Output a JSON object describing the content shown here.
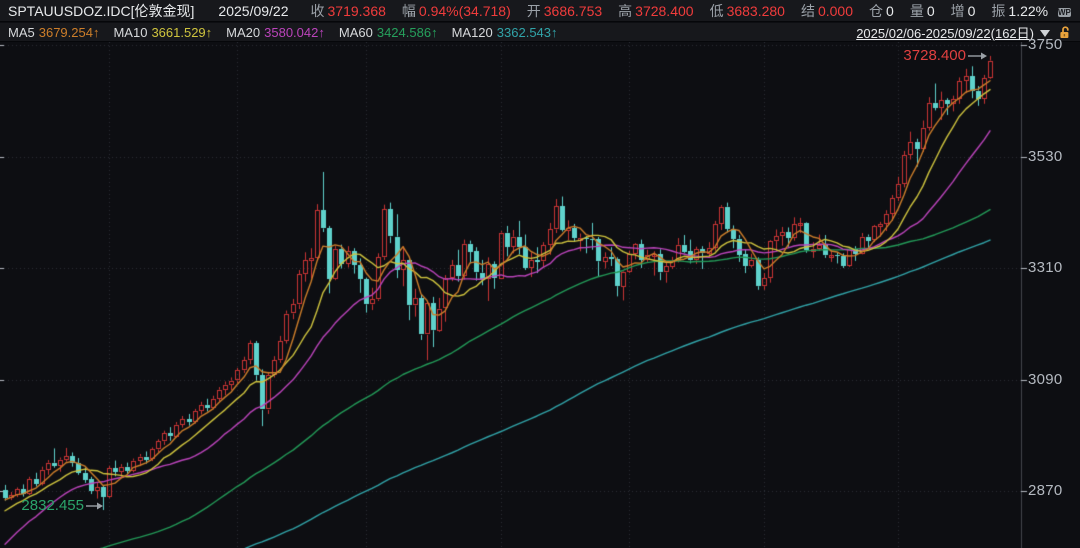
{
  "quote_bar": {
    "symbol": "SPTAUUSDOZ.IDC[伦敦金现]",
    "date": "2025/09/22",
    "close": {
      "label": "收",
      "value": "3719.368"
    },
    "range": {
      "label": "幅",
      "value": "0.94%(34.718)"
    },
    "open": {
      "label": "开",
      "value": "3686.753"
    },
    "high": {
      "label": "高",
      "value": "3728.400"
    },
    "low": {
      "label": "低",
      "value": "3683.280"
    },
    "settle": {
      "label": "结",
      "value": "0.000"
    },
    "position": {
      "label": "仓",
      "value": "0"
    },
    "volume": {
      "label": "量",
      "value": "0"
    },
    "increase": {
      "label": "增",
      "value": "0"
    },
    "amplitude": {
      "label": "振",
      "value": "1.22%"
    },
    "window_badge": "WP"
  },
  "ma_bar": {
    "items": [
      {
        "label": "MA5",
        "value": "3679.254↑",
        "color": "#cd7e2a"
      },
      {
        "label": "MA10",
        "value": "3661.529↑",
        "color": "#cfc43e"
      },
      {
        "label": "MA20",
        "value": "3580.042↑",
        "color": "#bb44bb"
      },
      {
        "label": "MA60",
        "value": "3424.586↑",
        "color": "#26a05c"
      },
      {
        "label": "MA120",
        "value": "3362.543↑",
        "color": "#31a3a8"
      }
    ],
    "period": {
      "text": "2025/02/06-2025/09/22(162日)"
    }
  },
  "colors": {
    "bg": "#0d0e12",
    "panel": "#17181c",
    "up": "#c93434",
    "down": "#5fd2cc",
    "ma5": "#cd7e2a",
    "ma10": "#cfc43e",
    "ma20": "#bb44bb",
    "ma60": "#239a58",
    "ma120": "#31a3a8",
    "grid": "#2c2f37",
    "axis": "#43464d",
    "tick_text": "#b4b9c0",
    "anno_high": "#e04040",
    "anno_low": "#2ba56b",
    "arrow": "#9aa0a6"
  },
  "chart_data": {
    "type": "candlestick",
    "title": "SPTAUUSDOZ.IDC 伦敦金现 (London spot gold) daily candles with MA5/10/20/60/120",
    "date_range": "2025/02/06-2025/09/22",
    "num_days": 162,
    "grid": "dotted",
    "y_axis": {
      "ticks": [
        3750,
        3530,
        3310,
        3090,
        2870
      ],
      "price_top": 3750,
      "price_bottom": 2870
    },
    "month_grid_days": [
      17,
      38,
      59,
      81,
      102,
      124,
      146
    ],
    "annotations": {
      "high": {
        "text": "3728.400",
        "value": 3728.4,
        "day": 161
      },
      "low": {
        "text": "2832.455",
        "value": 2832.455,
        "day": 16
      }
    },
    "ma_periods": [
      {
        "p": 120,
        "c": "ma120"
      },
      {
        "p": 60,
        "c": "ma60"
      },
      {
        "p": 20,
        "c": "ma20"
      },
      {
        "p": 10,
        "c": "ma10"
      },
      {
        "p": 5,
        "c": "ma5"
      }
    ],
    "ma_seed_segments": [
      [
        2320,
        2420,
        30
      ],
      [
        2480,
        2600,
        25
      ],
      [
        2570,
        2660,
        18
      ],
      [
        2660,
        2740,
        12
      ],
      [
        2740,
        2562,
        10
      ],
      [
        2570,
        2630,
        5
      ],
      [
        2608,
        2790,
        12
      ],
      [
        2800,
        2866,
        8
      ]
    ],
    "candles": [
      [
        2872,
        2882,
        2851,
        2856
      ],
      [
        2856,
        2868,
        2852,
        2862
      ],
      [
        2862,
        2877,
        2858,
        2874
      ],
      [
        2874,
        2883,
        2859,
        2864
      ],
      [
        2864,
        2898,
        2862,
        2894
      ],
      [
        2894,
        2906,
        2879,
        2885
      ],
      [
        2885,
        2918,
        2881,
        2912
      ],
      [
        2912,
        2931,
        2902,
        2926
      ],
      [
        2926,
        2954,
        2916,
        2920
      ],
      [
        2920,
        2936,
        2908,
        2932
      ],
      [
        2932,
        2955,
        2928,
        2939
      ],
      [
        2939,
        2946,
        2918,
        2925
      ],
      [
        2925,
        2935,
        2902,
        2906
      ],
      [
        2906,
        2916,
        2886,
        2893
      ],
      [
        2893,
        2898,
        2864,
        2870
      ],
      [
        2870,
        2886,
        2855,
        2877
      ],
      [
        2877,
        2881,
        2832.455,
        2858
      ],
      [
        2858,
        2920,
        2856,
        2915
      ],
      [
        2915,
        2930,
        2899,
        2908
      ],
      [
        2908,
        2923,
        2898,
        2918
      ],
      [
        2918,
        2926,
        2904,
        2910
      ],
      [
        2910,
        2934,
        2907,
        2930
      ],
      [
        2930,
        2943,
        2919,
        2938
      ],
      [
        2938,
        2948,
        2924,
        2932
      ],
      [
        2932,
        2956,
        2929,
        2952
      ],
      [
        2952,
        2972,
        2947,
        2968
      ],
      [
        2968,
        2989,
        2961,
        2984
      ],
      [
        2984,
        2996,
        2969,
        2978
      ],
      [
        2978,
        3006,
        2975,
        3001
      ],
      [
        3001,
        3018,
        2995,
        3012
      ],
      [
        3012,
        3022,
        2999,
        3006
      ],
      [
        3006,
        3032,
        3003,
        3028
      ],
      [
        3028,
        3046,
        3021,
        3040
      ],
      [
        3040,
        3052,
        3027,
        3034
      ],
      [
        3034,
        3058,
        3031,
        3052
      ],
      [
        3052,
        3075,
        3047,
        3070
      ],
      [
        3070,
        3086,
        3059,
        3080
      ],
      [
        3080,
        3094,
        3069,
        3088
      ],
      [
        3088,
        3113,
        3083,
        3108
      ],
      [
        3108,
        3135,
        3103,
        3128
      ],
      [
        3128,
        3167,
        3120,
        3162
      ],
      [
        3162,
        3166,
        3088,
        3098
      ],
      [
        3098,
        3110,
        2998,
        3030
      ],
      [
        3030,
        3105,
        3022,
        3098
      ],
      [
        3098,
        3136,
        3094,
        3128
      ],
      [
        3128,
        3176,
        3123,
        3166
      ],
      [
        3166,
        3226,
        3161,
        3220
      ],
      [
        3220,
        3249,
        3209,
        3238
      ],
      [
        3238,
        3306,
        3229,
        3298
      ],
      [
        3298,
        3341,
        3283,
        3326
      ],
      [
        3326,
        3349,
        3289,
        3330
      ],
      [
        3330,
        3436,
        3324,
        3424
      ],
      [
        3424,
        3499.5,
        3381,
        3388
      ],
      [
        3388,
        3393,
        3260,
        3288
      ],
      [
        3288,
        3353,
        3286,
        3348
      ],
      [
        3348,
        3356,
        3309,
        3318
      ],
      [
        3318,
        3353,
        3311,
        3343
      ],
      [
        3343,
        3349,
        3299,
        3316
      ],
      [
        3316,
        3329,
        3261,
        3288
      ],
      [
        3288,
        3291,
        3222,
        3238
      ],
      [
        3238,
        3271,
        3227,
        3248
      ],
      [
        3248,
        3339,
        3245,
        3331
      ],
      [
        3331,
        3435,
        3326,
        3426
      ],
      [
        3426,
        3439,
        3359,
        3372
      ],
      [
        3372,
        3416,
        3290,
        3306
      ],
      [
        3306,
        3353,
        3274,
        3325
      ],
      [
        3325,
        3327,
        3207,
        3236
      ],
      [
        3236,
        3269,
        3214,
        3250
      ],
      [
        3250,
        3258,
        3168,
        3178
      ],
      [
        3178,
        3245,
        3128,
        3240
      ],
      [
        3240,
        3253,
        3154,
        3187
      ],
      [
        3187,
        3251,
        3184,
        3230
      ],
      [
        3230,
        3296,
        3204,
        3290
      ],
      [
        3290,
        3326,
        3284,
        3315
      ],
      [
        3315,
        3346,
        3283,
        3294
      ],
      [
        3294,
        3366,
        3287,
        3358
      ],
      [
        3358,
        3364,
        3319,
        3343
      ],
      [
        3343,
        3351,
        3285,
        3301
      ],
      [
        3301,
        3326,
        3276,
        3288
      ],
      [
        3288,
        3331,
        3245,
        3318
      ],
      [
        3318,
        3323,
        3269,
        3290
      ],
      [
        3290,
        3383,
        3288,
        3380
      ],
      [
        3380,
        3393,
        3333,
        3353
      ],
      [
        3353,
        3385,
        3339,
        3372
      ],
      [
        3372,
        3403,
        3337,
        3352
      ],
      [
        3352,
        3376,
        3306,
        3310
      ],
      [
        3310,
        3341,
        3292,
        3326
      ],
      [
        3326,
        3351,
        3300,
        3323
      ],
      [
        3323,
        3361,
        3311,
        3355
      ],
      [
        3355,
        3399,
        3336,
        3386
      ],
      [
        3386,
        3446,
        3379,
        3432
      ],
      [
        3432,
        3451,
        3382,
        3385
      ],
      [
        3385,
        3404,
        3365,
        3388
      ],
      [
        3388,
        3397,
        3362,
        3369
      ],
      [
        3369,
        3378,
        3343,
        3370
      ],
      [
        3370,
        3373,
        3339,
        3368
      ],
      [
        3368,
        3399,
        3346,
        3367
      ],
      [
        3367,
        3371,
        3294,
        3323
      ],
      [
        3323,
        3341,
        3309,
        3332
      ],
      [
        3332,
        3351,
        3314,
        3328
      ],
      [
        3328,
        3331,
        3254,
        3274
      ],
      [
        3274,
        3305,
        3246,
        3303
      ],
      [
        3303,
        3344,
        3300,
        3338
      ],
      [
        3338,
        3359,
        3327,
        3357
      ],
      [
        3357,
        3366,
        3310,
        3326
      ],
      [
        3326,
        3346,
        3322,
        3336
      ],
      [
        3336,
        3343,
        3295,
        3337
      ],
      [
        3337,
        3347,
        3286,
        3301
      ],
      [
        3301,
        3323,
        3281,
        3313
      ],
      [
        3313,
        3332,
        3308,
        3324
      ],
      [
        3324,
        3369,
        3321,
        3356
      ],
      [
        3356,
        3375,
        3340,
        3343
      ],
      [
        3343,
        3366,
        3319,
        3325
      ],
      [
        3325,
        3352,
        3318,
        3347
      ],
      [
        3347,
        3353,
        3308,
        3339
      ],
      [
        3339,
        3361,
        3330,
        3350
      ],
      [
        3350,
        3403,
        3344,
        3397
      ],
      [
        3397,
        3434,
        3385,
        3431
      ],
      [
        3431,
        3439,
        3380,
        3387
      ],
      [
        3387,
        3394,
        3349,
        3368
      ],
      [
        3368,
        3375,
        3322,
        3337
      ],
      [
        3337,
        3346,
        3300,
        3314
      ],
      [
        3314,
        3338,
        3311,
        3326
      ],
      [
        3326,
        3331,
        3267,
        3274
      ],
      [
        3274,
        3300,
        3267,
        3290
      ],
      [
        3290,
        3365,
        3281,
        3363
      ],
      [
        3363,
        3386,
        3344,
        3373
      ],
      [
        3373,
        3391,
        3354,
        3381
      ],
      [
        3381,
        3390,
        3352,
        3369
      ],
      [
        3369,
        3410,
        3364,
        3397
      ],
      [
        3397,
        3409,
        3379,
        3398
      ],
      [
        3398,
        3400,
        3340,
        3344
      ],
      [
        3344,
        3361,
        3330,
        3348
      ],
      [
        3348,
        3376,
        3344,
        3355
      ],
      [
        3355,
        3375,
        3330,
        3335
      ],
      [
        3335,
        3346,
        3322,
        3336
      ],
      [
        3336,
        3341,
        3319,
        3334
      ],
      [
        3334,
        3339,
        3310,
        3315
      ],
      [
        3315,
        3351,
        3312,
        3348
      ],
      [
        3348,
        3353,
        3324,
        3339
      ],
      [
        3339,
        3379,
        3337,
        3372
      ],
      [
        3372,
        3376,
        3349,
        3365
      ],
      [
        3365,
        3395,
        3361,
        3393
      ],
      [
        3393,
        3401,
        3372,
        3397
      ],
      [
        3397,
        3424,
        3383,
        3417
      ],
      [
        3417,
        3454,
        3403,
        3448
      ],
      [
        3448,
        3490,
        3442,
        3476
      ],
      [
        3476,
        3541,
        3469,
        3533
      ],
      [
        3533,
        3579,
        3524,
        3559
      ],
      [
        3559,
        3565,
        3510,
        3546
      ],
      [
        3546,
        3601,
        3539,
        3587
      ],
      [
        3587,
        3647,
        3581,
        3636
      ],
      [
        3636,
        3674,
        3621,
        3626
      ],
      [
        3626,
        3658,
        3602,
        3641
      ],
      [
        3641,
        3645,
        3612,
        3634
      ],
      [
        3634,
        3650,
        3619,
        3643
      ],
      [
        3643,
        3686,
        3634,
        3679
      ],
      [
        3679,
        3703,
        3655,
        3689
      ],
      [
        3689,
        3708,
        3645,
        3660
      ],
      [
        3660,
        3669,
        3630,
        3644
      ],
      [
        3644,
        3691,
        3634,
        3685
      ],
      [
        3686.753,
        3728.4,
        3683.28,
        3719.368
      ]
    ]
  }
}
